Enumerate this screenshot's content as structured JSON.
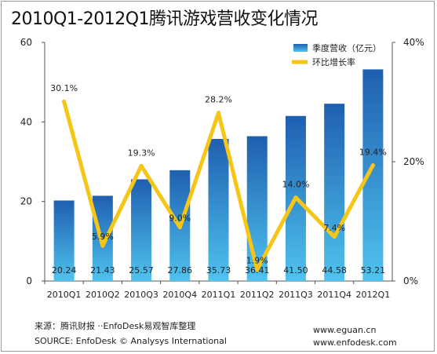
{
  "title": "2010Q1-2012Q1腾讯游戏营收变化情况",
  "chart_data": {
    "type": "bar",
    "categories": [
      "2010Q1",
      "2010Q2",
      "2010Q3",
      "2010Q4",
      "2011Q1",
      "2011Q2",
      "2011Q3",
      "2011Q4",
      "2012Q1"
    ],
    "series": [
      {
        "name": "季度营收（亿元）",
        "type": "bar",
        "axis": "left",
        "values": [
          20.24,
          21.43,
          25.57,
          27.86,
          35.73,
          36.41,
          41.5,
          44.58,
          53.21
        ],
        "labels": [
          "20.24",
          "21.43",
          "25.57",
          "27.86",
          "35.73",
          "36.41",
          "41.50",
          "44.58",
          "53.21"
        ]
      },
      {
        "name": "环比增长率",
        "type": "line",
        "axis": "right",
        "values": [
          30.1,
          5.9,
          19.3,
          9.0,
          28.2,
          1.9,
          14.0,
          7.4,
          19.4
        ],
        "labels": [
          "30.1%",
          "5.9%",
          "19.3%",
          "9.0%",
          "28.2%",
          "1.9%",
          "14.0%",
          "7.4%",
          "19.4%"
        ]
      }
    ],
    "y_left": {
      "ylim": [
        0,
        60
      ],
      "ticks": [
        "0",
        "20",
        "40",
        "60"
      ]
    },
    "y_right": {
      "ylim": [
        0,
        40
      ],
      "ticks": [
        "0%",
        "20%",
        "40%"
      ]
    },
    "legend_position": "top-right",
    "colors": {
      "bar_top": "#1f5fb0",
      "bar_bottom": "#4fc3ee",
      "line": "#f5c518"
    }
  },
  "footer": {
    "source_cn": "来源：腾讯财报 ··EnfoDesk易观智库整理",
    "source_en": "SOURCE: EnfoDesk © Analysys International",
    "url1": "www.eguan.cn",
    "url2": "www.enfodesk.com"
  }
}
